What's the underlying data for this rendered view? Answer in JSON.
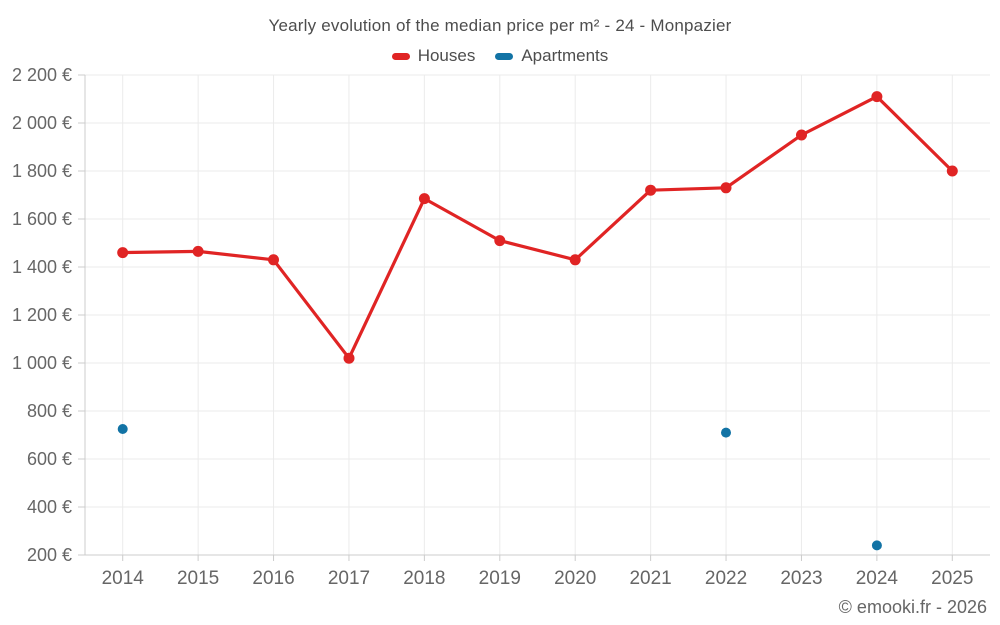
{
  "header": {
    "title": "Yearly evolution of the median price per m² - 24 - Monpazier"
  },
  "legend": {
    "items": [
      {
        "id": "houses",
        "label": "Houses",
        "color": "#e02424"
      },
      {
        "id": "apartments",
        "label": "Apartments",
        "color": "#1273a5"
      }
    ]
  },
  "footer": {
    "text": "© emooki.fr - 2026"
  },
  "chart_data": {
    "type": "line",
    "title": "Yearly evolution of the median price per m² - 24 - Monpazier",
    "categories": [
      "2014",
      "2015",
      "2016",
      "2017",
      "2018",
      "2019",
      "2020",
      "2021",
      "2022",
      "2023",
      "2024",
      "2025"
    ],
    "series": [
      {
        "name": "Houses",
        "color": "#e02424",
        "style": "line+markers",
        "values": [
          1460,
          1465,
          1430,
          1020,
          1685,
          1510,
          1430,
          1720,
          1730,
          1950,
          2110,
          1800
        ]
      },
      {
        "name": "Apartments",
        "color": "#1273a5",
        "style": "markers",
        "values": [
          725,
          null,
          null,
          null,
          null,
          null,
          null,
          null,
          710,
          null,
          240,
          null
        ]
      }
    ],
    "xlabel": "",
    "ylabel": "",
    "ylim": [
      200,
      2200
    ],
    "ytick_step": 200,
    "ytick_labels": [
      "200 €",
      "400 €",
      "600 €",
      "800 €",
      "1 000 €",
      "1 200 €",
      "1 400 €",
      "1 600 €",
      "1 800 €",
      "2 000 €",
      "2 200 €"
    ],
    "currency": "€",
    "grid": true,
    "legend_position": "top",
    "colors": {
      "grid": "#ebebeb",
      "axis": "#cccccc",
      "tick": "#cccccc",
      "axis_text": "#666666",
      "title_text": "#4d4d4d"
    }
  }
}
